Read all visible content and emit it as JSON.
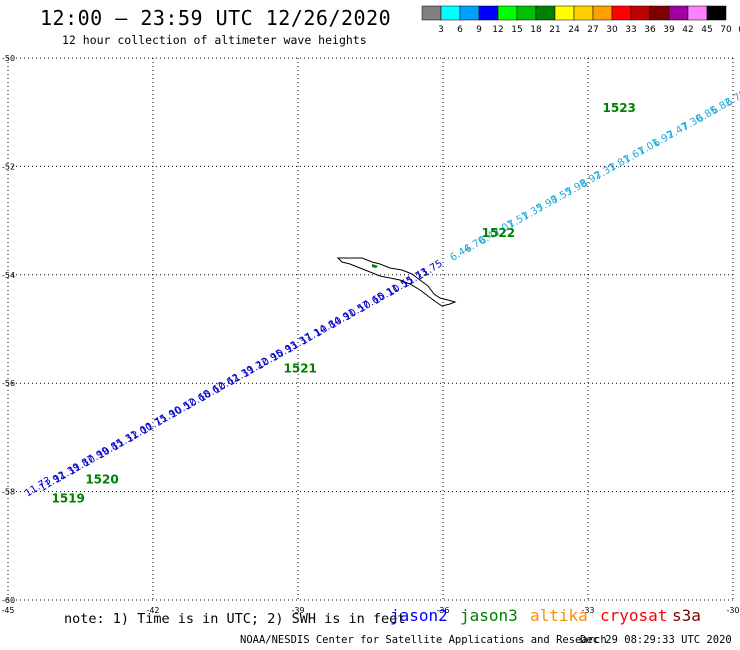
{
  "header": {
    "title": "12:00 – 23:59 UTC 12/26/2020",
    "subtitle": "12 hour collection of altimeter wave heights"
  },
  "colorscale": {
    "labels": [
      "3",
      "6",
      "9",
      "12",
      "15",
      "18",
      "21",
      "24",
      "27",
      "30",
      "33",
      "36",
      "39",
      "42",
      "45",
      "70",
      "(ft)"
    ],
    "colors": [
      "#808080",
      "#00ffff",
      "#00a0ff",
      "#0000ff",
      "#00ff00",
      "#00c000",
      "#008000",
      "#ffff00",
      "#ffd000",
      "#ffa000",
      "#ff0000",
      "#c00000",
      "#800000",
      "#a000a0",
      "#ff80ff",
      "#000000"
    ]
  },
  "axes": {
    "lat_labels": [
      "-50",
      "-52",
      "-54",
      "-56",
      "-58",
      "-60"
    ],
    "lon_labels": [
      "-45",
      "-42",
      "-39",
      "-36",
      "-33",
      "-30"
    ],
    "lat_range": [
      -50,
      -60
    ],
    "lon_range": [
      -45,
      -30
    ]
  },
  "tracks": [
    {
      "satellite": "jason2",
      "color": "#0000cc",
      "values": [
        "11.73",
        "11.92",
        "11.39",
        "11.87",
        "10.99",
        "10.85",
        "11.31",
        "12.00",
        "11.75",
        "11.90",
        "10.52",
        "10.68",
        "10.62",
        "10.62",
        "11.39",
        "11.22",
        "10.95",
        "10.93",
        "11.37",
        "11.14",
        "10.84",
        "10.91",
        "10.57",
        "10.65",
        "10.11",
        "10.55",
        "11.73",
        "11.75"
      ],
      "lat": [
        -58.1,
        -58.0,
        -57.85,
        -57.7,
        -57.55,
        -57.4,
        -57.25,
        -57.1,
        -56.95,
        -56.8,
        -56.65,
        -56.5,
        -56.35,
        -56.2,
        -56.05,
        -55.9,
        -55.75,
        -55.6,
        -55.45,
        -55.3,
        -55.15,
        -55.0,
        -54.85,
        -54.7,
        -54.55,
        -54.4,
        -54.25,
        -54.1
      ],
      "lon": [
        -44.6,
        -44.3,
        -44.0,
        -43.7,
        -43.4,
        -43.1,
        -42.8,
        -42.5,
        -42.2,
        -41.9,
        -41.6,
        -41.3,
        -41.0,
        -40.7,
        -40.4,
        -40.1,
        -39.8,
        -39.5,
        -39.2,
        -38.9,
        -38.6,
        -38.3,
        -38.0,
        -37.7,
        -37.4,
        -37.1,
        -36.8,
        -36.5
      ]
    },
    {
      "satellite": "s3a",
      "color": "#1aa8d8",
      "values": [
        "6.44",
        "6.70",
        "6.42",
        "7.01",
        "7.51",
        "7.35",
        "7.98",
        "7.55",
        "7.98",
        "8.92",
        "7.31",
        "7.81",
        "7.61",
        "7.01",
        "6.92",
        "7.47",
        "7.30",
        "6.85",
        "6.82",
        "6.79",
        "6.71",
        "6.14",
        "6.35",
        "6.65"
      ],
      "lat": [
        -53.75,
        -53.6,
        -53.45,
        -53.3,
        -53.15,
        -53.0,
        -52.85,
        -52.7,
        -52.55,
        -52.4,
        -52.25,
        -52.1,
        -51.95,
        -51.8,
        -51.65,
        -51.5,
        -51.35,
        -51.2,
        -51.05,
        -50.9,
        -50.75,
        -50.6,
        -50.45,
        -50.3
      ],
      "lon": [
        -35.8,
        -35.5,
        -35.2,
        -34.9,
        -34.6,
        -34.3,
        -34.0,
        -33.7,
        -33.4,
        -33.1,
        -32.8,
        -32.5,
        -32.2,
        -31.9,
        -31.6,
        -31.3,
        -31.0,
        -30.7,
        -30.4,
        -30.1,
        -29.8,
        -29.5,
        -29.2,
        -28.9
      ]
    }
  ],
  "orbit_labels": [
    {
      "text": "1519",
      "lat": -58.2,
      "lon": -44.1
    },
    {
      "text": "1520",
      "lat": -57.85,
      "lon": -43.4
    },
    {
      "text": "1521",
      "lat": -55.8,
      "lon": -39.3
    },
    {
      "text": "1522",
      "lat": -53.3,
      "lon": -35.2
    },
    {
      "text": "1523",
      "lat": -51.0,
      "lon": -32.7
    }
  ],
  "footer": {
    "note": "note: 1) Time is in UTC; 2) SWH is in feet",
    "credit": "NOAA/NESDIS Center for Satellite Applications and Research",
    "timestamp": "Dec 29 08:29:33 UTC 2020",
    "satellites": [
      {
        "name": "jason2",
        "color": "#0000ff"
      },
      {
        "name": "jason3",
        "color": "#008000"
      },
      {
        "name": "altika",
        "color": "#ff8c00"
      },
      {
        "name": "cryosat",
        "color": "#ff0000"
      },
      {
        "name": "s3a",
        "color": "#800000"
      }
    ]
  }
}
